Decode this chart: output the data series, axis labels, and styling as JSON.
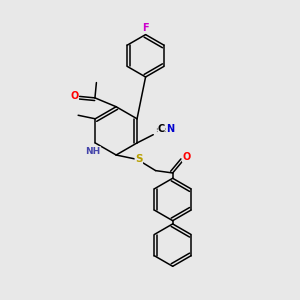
{
  "background_color": "#e8e8e8",
  "fig_size": [
    3.0,
    3.0
  ],
  "dpi": 100,
  "atom_colors": {
    "C": "#000000",
    "N": "#0000cd",
    "O": "#ff0000",
    "F": "#cc00cc",
    "S": "#b8a000",
    "H": "#4444aa"
  },
  "bond_color": "#000000",
  "bond_width": 1.1
}
